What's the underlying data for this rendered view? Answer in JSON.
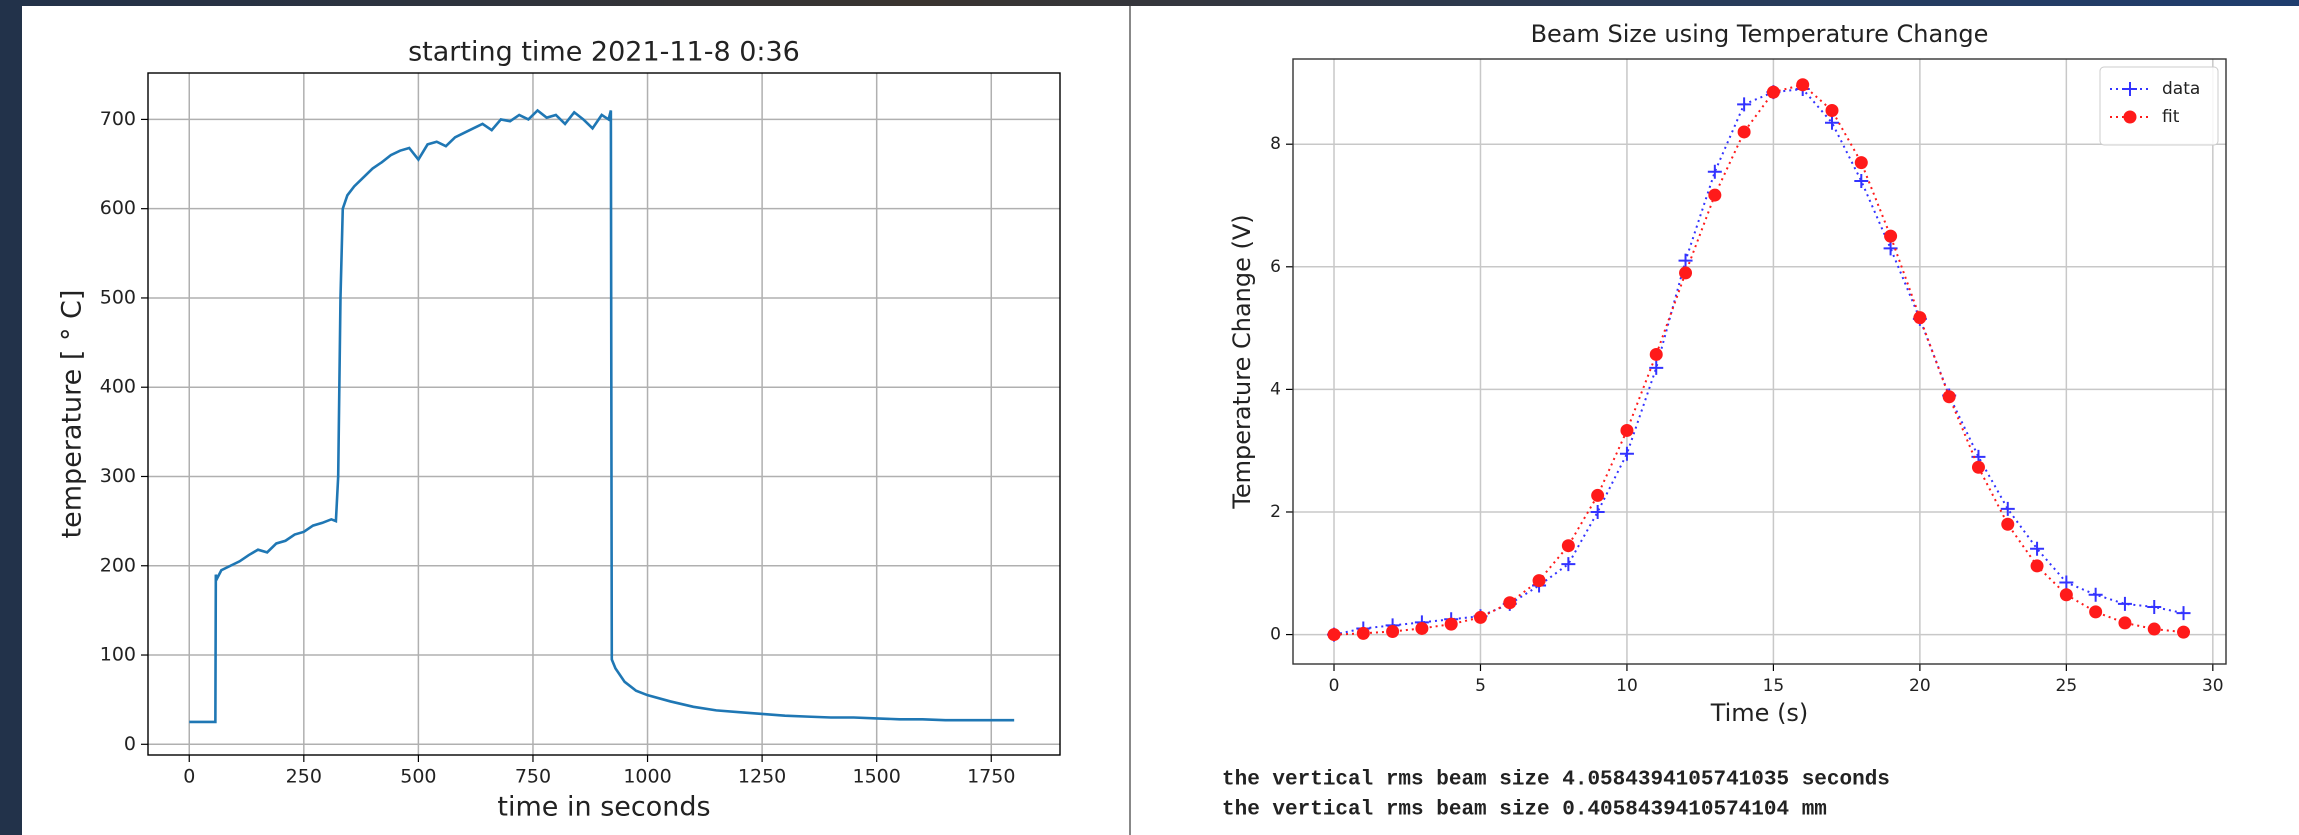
{
  "chart_data": [
    {
      "type": "line",
      "title": "starting time 2021-11-8 0:36",
      "xlabel": "time in seconds",
      "ylabel": "temperature [ ° C]",
      "x": [
        0,
        57,
        58,
        60,
        70,
        90,
        110,
        130,
        150,
        170,
        190,
        210,
        230,
        250,
        270,
        290,
        310,
        320,
        325,
        330,
        335,
        345,
        360,
        380,
        400,
        420,
        440,
        460,
        480,
        500,
        520,
        540,
        560,
        580,
        600,
        620,
        640,
        660,
        680,
        700,
        720,
        740,
        760,
        780,
        800,
        820,
        840,
        860,
        880,
        900,
        915,
        920,
        922,
        930,
        950,
        975,
        1000,
        1050,
        1100,
        1150,
        1200,
        1250,
        1300,
        1350,
        1400,
        1450,
        1500,
        1550,
        1600,
        1650,
        1700,
        1800
      ],
      "values": [
        25,
        25,
        190,
        185,
        195,
        200,
        205,
        212,
        218,
        215,
        225,
        228,
        235,
        238,
        245,
        248,
        252,
        250,
        300,
        500,
        600,
        615,
        625,
        635,
        645,
        652,
        660,
        665,
        668,
        655,
        672,
        675,
        670,
        680,
        685,
        690,
        695,
        688,
        700,
        698,
        705,
        700,
        710,
        702,
        705,
        695,
        708,
        700,
        690,
        705,
        700,
        710,
        95,
        85,
        70,
        60,
        55,
        48,
        42,
        38,
        36,
        34,
        32,
        31,
        30,
        30,
        29,
        28,
        28,
        27,
        27,
        27
      ],
      "color": "#1f77b4",
      "xlim": [
        -90,
        1900
      ],
      "xticks": [
        0,
        250,
        500,
        750,
        1000,
        1250,
        1500,
        1750
      ],
      "ylim": [
        -12,
        752
      ],
      "yticks": [
        0,
        100,
        200,
        300,
        400,
        500,
        600,
        700
      ],
      "grid": true
    },
    {
      "type": "line",
      "title": "Beam Size using Temperature Change",
      "xlabel": "Time (s)",
      "ylabel": "Temperature Change (V)",
      "x": [
        0,
        1,
        2,
        3,
        4,
        5,
        6,
        7,
        8,
        9,
        10,
        11,
        12,
        13,
        14,
        15,
        16,
        17,
        18,
        19,
        20,
        21,
        22,
        23,
        24,
        25,
        26,
        27,
        28,
        29
      ],
      "series": [
        {
          "name": "data",
          "color": "#3333ff",
          "marker": "+",
          "values": [
            0,
            0.1,
            0.15,
            0.2,
            0.25,
            0.3,
            0.5,
            0.8,
            1.15,
            2.0,
            2.95,
            4.35,
            6.1,
            7.55,
            8.65,
            8.85,
            8.9,
            8.35,
            7.4,
            6.3,
            5.15,
            3.9,
            2.9,
            2.05,
            1.4,
            0.85,
            0.65,
            0.5,
            0.45,
            0.35
          ]
        },
        {
          "name": "fit",
          "color": "#ff1a1a",
          "marker": "o",
          "values": [
            0,
            0.02,
            0.05,
            0.1,
            0.17,
            0.28,
            0.52,
            0.88,
            1.45,
            2.27,
            3.33,
            4.57,
            5.9,
            7.17,
            8.2,
            8.85,
            8.97,
            8.55,
            7.7,
            6.5,
            5.17,
            3.88,
            2.73,
            1.8,
            1.12,
            0.65,
            0.37,
            0.19,
            0.09,
            0.04
          ]
        }
      ],
      "xlim": [
        -1.4,
        30.45
      ],
      "xticks": [
        0,
        5,
        10,
        15,
        20,
        25,
        30
      ],
      "ylim": [
        -0.48,
        9.39
      ],
      "yticks": [
        0,
        2,
        4,
        6,
        8
      ],
      "grid": true,
      "legend": "upper right"
    }
  ],
  "notes": [
    "the vertical rms beam size 4.0584394105741035 seconds",
    "the vertical rms beam size 0.4058439410574104 mm"
  ]
}
